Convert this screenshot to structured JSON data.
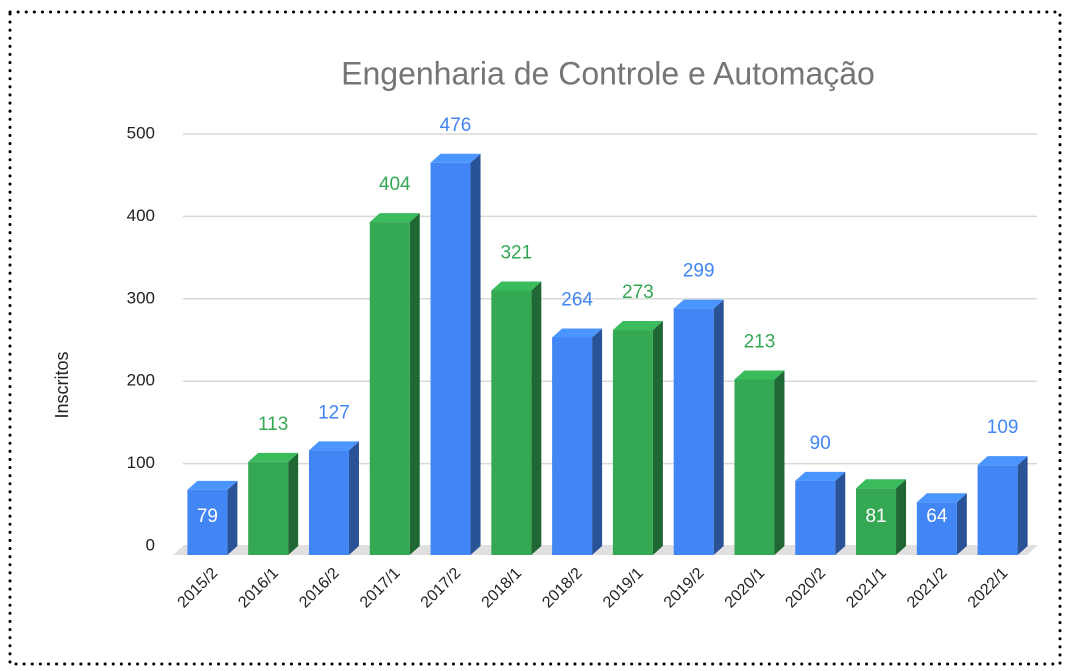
{
  "chart_data": {
    "type": "bar3d",
    "title": "Engenharia de Controle e Automação",
    "y_label": "Inscritos",
    "categories": [
      "2015/2",
      "2016/1",
      "2016/2",
      "2017/1",
      "2017/2",
      "2018/1",
      "2018/2",
      "2019/1",
      "2019/2",
      "2020/1",
      "2020/2",
      "2021/1",
      "2021/2",
      "2022/1"
    ],
    "values": [
      79,
      113,
      127,
      404,
      476,
      321,
      264,
      273,
      299,
      213,
      90,
      81,
      64,
      109
    ],
    "colors": [
      "#4285f4",
      "#34a853",
      "#4285f4",
      "#34a853",
      "#4285f4",
      "#34a853",
      "#4285f4",
      "#34a853",
      "#4285f4",
      "#34a853",
      "#4285f4",
      "#34a853",
      "#4285f4",
      "#4285f4"
    ],
    "ylim": [
      0,
      500
    ],
    "yticks": [
      0,
      100,
      200,
      300,
      400,
      500
    ],
    "grid": true
  }
}
